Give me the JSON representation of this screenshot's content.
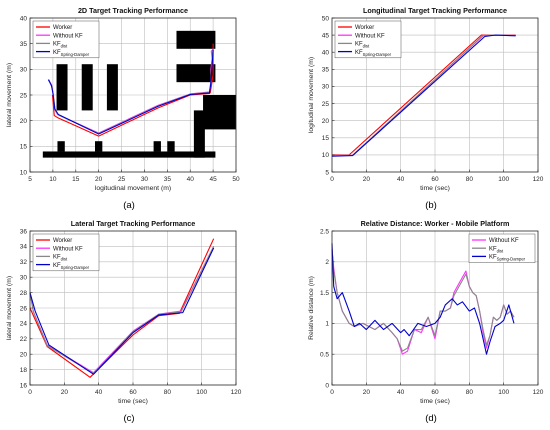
{
  "colors": {
    "worker": "#ff0000",
    "without_kf": "#ff33ff",
    "kf_dist": "#888888",
    "kf_spring": "#0000cc",
    "obstacle": "#000000",
    "grid": "#bdbdbd"
  },
  "chart_data": [
    {
      "type": "line",
      "panel_label": "(a)",
      "title": "2D Target Tracking Performance",
      "xlabel": "logitudinal movement (m)",
      "ylabel": "lateral movement (m)",
      "xlim": [
        5,
        50
      ],
      "ylim": [
        10,
        40
      ],
      "xticks": [
        5,
        10,
        15,
        20,
        25,
        30,
        35,
        40,
        45,
        50
      ],
      "yticks": [
        10,
        15,
        20,
        25,
        30,
        35,
        40
      ],
      "grid": true,
      "legend": {
        "position": "top-left",
        "entries": [
          {
            "series": "worker",
            "text": "Worker",
            "sub": ""
          },
          {
            "series": "without_kf",
            "text": "Without KF",
            "sub": ""
          },
          {
            "series": "kf_dist",
            "text": "KF",
            "sub": "dist"
          },
          {
            "series": "kf_spring",
            "text": "KF",
            "sub": "Spring-Damper"
          }
        ]
      },
      "obstacles": [
        [
          10.8,
          22,
          13.2,
          31
        ],
        [
          16.3,
          22,
          18.7,
          31
        ],
        [
          21.8,
          22,
          24.2,
          31
        ],
        [
          37.0,
          34,
          45.5,
          37.5
        ],
        [
          37.0,
          27.5,
          45.5,
          31
        ],
        [
          42.8,
          18.3,
          50,
          25
        ],
        [
          40.8,
          12.8,
          43.2,
          22
        ],
        [
          7.8,
          12.8,
          45.5,
          14.0
        ],
        [
          11.0,
          14,
          12.6,
          16
        ],
        [
          19.2,
          14,
          20.8,
          16
        ],
        [
          32.0,
          14,
          33.6,
          16
        ],
        [
          35.0,
          14,
          36.6,
          16
        ]
      ],
      "series": [
        {
          "key": "worker",
          "x": [
            9.9,
            10.2,
            10.3,
            11.0,
            20.0,
            33.0,
            40.0,
            44.2,
            44.4,
            45.0,
            45.0
          ],
          "y": [
            25.0,
            22.0,
            21.0,
            20.6,
            17.0,
            22.5,
            25.0,
            25.3,
            25.5,
            29.0,
            35.0
          ]
        },
        {
          "key": "without_kf",
          "x": [
            9.1,
            9.3,
            9.7,
            10.0,
            10.4,
            11.0,
            20.0,
            33.0,
            40.0,
            44.2,
            44.6,
            44.5,
            44.8,
            44.6,
            45.0
          ],
          "y": [
            28.0,
            27.6,
            27.0,
            25.5,
            22.2,
            21.2,
            17.6,
            23.0,
            25.2,
            25.6,
            27.5,
            30.0,
            32.0,
            33.5,
            34.0
          ]
        },
        {
          "key": "kf_dist",
          "x": [
            9.1,
            9.4,
            9.8,
            10.1,
            10.5,
            11.2,
            20.0,
            33.0,
            40.0,
            44.2,
            44.5,
            44.6,
            44.8,
            45.0
          ],
          "y": [
            28.0,
            27.4,
            26.5,
            25.0,
            22.0,
            21.1,
            17.5,
            22.9,
            25.2,
            25.5,
            27.5,
            30.0,
            32.5,
            34.0
          ]
        },
        {
          "key": "kf_spring",
          "x": [
            9.0,
            9.3,
            9.7,
            10.0,
            10.4,
            11.2,
            20.0,
            33.0,
            40.0,
            44.2,
            44.5,
            44.7,
            44.9,
            45.0
          ],
          "y": [
            28.0,
            27.5,
            26.8,
            25.4,
            22.3,
            21.2,
            17.4,
            22.8,
            25.1,
            25.4,
            27.3,
            30.0,
            32.2,
            33.8
          ]
        }
      ]
    },
    {
      "type": "line",
      "panel_label": "(b)",
      "title": "Longitudinal Target Tracking Performance",
      "xlabel": "time (sec)",
      "ylabel": "logitudinal movement (m)",
      "xlim": [
        0,
        120
      ],
      "ylim": [
        5,
        50
      ],
      "xticks": [
        0,
        20,
        40,
        60,
        80,
        100,
        120
      ],
      "yticks": [
        5,
        10,
        15,
        20,
        25,
        30,
        35,
        40,
        45,
        50
      ],
      "grid": true,
      "legend": {
        "position": "top-left",
        "entries": [
          {
            "series": "worker",
            "text": "Worker",
            "sub": ""
          },
          {
            "series": "without_kf",
            "text": "Without KF",
            "sub": ""
          },
          {
            "series": "kf_dist",
            "text": "KF",
            "sub": "dist"
          },
          {
            "series": "kf_spring",
            "text": "KF",
            "sub": "Spring-Damper"
          }
        ]
      },
      "series": [
        {
          "key": "worker",
          "x": [
            0,
            10,
            87,
            95,
            107
          ],
          "y": [
            10,
            10,
            45,
            45,
            45
          ]
        },
        {
          "key": "without_kf",
          "x": [
            0,
            12,
            88,
            95,
            107
          ],
          "y": [
            9.8,
            9.9,
            44.8,
            45.0,
            44.9
          ]
        },
        {
          "key": "kf_dist",
          "x": [
            0,
            12,
            88,
            95,
            107
          ],
          "y": [
            9.8,
            9.9,
            44.9,
            45.0,
            44.9
          ]
        },
        {
          "key": "kf_spring",
          "x": [
            0,
            12,
            89,
            95,
            107
          ],
          "y": [
            9.6,
            9.8,
            44.6,
            45.0,
            44.8
          ]
        }
      ]
    },
    {
      "type": "line",
      "panel_label": "(c)",
      "title": "Lateral Target Tracking Performance",
      "xlabel": "time (sec)",
      "ylabel": "lateral movement (m)",
      "xlim": [
        0,
        120
      ],
      "ylim": [
        16,
        36
      ],
      "xticks": [
        0,
        20,
        40,
        60,
        80,
        100,
        120
      ],
      "yticks": [
        16,
        18,
        20,
        22,
        24,
        26,
        28,
        30,
        32,
        34,
        36
      ],
      "grid": true,
      "legend": {
        "position": "top-left",
        "entries": [
          {
            "series": "worker",
            "text": "Worker",
            "sub": ""
          },
          {
            "series": "without_kf",
            "text": "Without KF",
            "sub": ""
          },
          {
            "series": "kf_dist",
            "text": "KF",
            "sub": "dist"
          },
          {
            "series": "kf_spring",
            "text": "KF",
            "sub": "Spring-Damper"
          }
        ]
      },
      "series": [
        {
          "key": "worker",
          "x": [
            0,
            10,
            35,
            60,
            75,
            87,
            107
          ],
          "y": [
            26.0,
            21.0,
            17.0,
            22.5,
            25.0,
            25.3,
            35.0
          ]
        },
        {
          "key": "without_kf",
          "x": [
            0,
            2,
            10,
            37,
            60,
            75,
            88,
            107
          ],
          "y": [
            28.0,
            25.5,
            21.2,
            17.6,
            23.0,
            25.2,
            25.6,
            34.0
          ]
        },
        {
          "key": "kf_dist",
          "x": [
            0,
            2,
            10,
            37,
            60,
            75,
            88,
            107
          ],
          "y": [
            28.0,
            25.5,
            21.1,
            17.5,
            22.9,
            25.2,
            25.5,
            34.0
          ]
        },
        {
          "key": "kf_spring",
          "x": [
            0,
            3,
            11,
            37,
            60,
            75,
            89,
            107
          ],
          "y": [
            28.0,
            25.6,
            21.2,
            17.4,
            22.8,
            25.1,
            25.4,
            33.8
          ]
        }
      ]
    },
    {
      "type": "line",
      "panel_label": "(d)",
      "title": "Relative Distance: Worker - Mobile Platform",
      "xlabel": "time (sec)",
      "ylabel": "Relative distance (m)",
      "xlim": [
        0,
        120
      ],
      "ylim": [
        0,
        2.5
      ],
      "xticks": [
        0,
        20,
        40,
        60,
        80,
        100,
        120
      ],
      "yticks": [
        0,
        0.5,
        1,
        1.5,
        2,
        2.5
      ],
      "grid": true,
      "legend": {
        "position": "top-right",
        "entries": [
          {
            "series": "without_kf",
            "text": "Without KF",
            "sub": ""
          },
          {
            "series": "kf_dist",
            "text": "KF",
            "sub": "dist"
          },
          {
            "series": "kf_spring",
            "text": "KF",
            "sub": "Spring-Damper"
          }
        ]
      },
      "series": [
        {
          "key": "without_kf",
          "x": [
            0,
            1,
            3,
            6,
            10,
            13,
            18,
            25,
            30,
            35,
            38,
            41,
            44,
            48,
            52,
            56,
            60,
            63,
            66,
            69,
            71,
            73,
            75,
            78,
            80,
            82,
            84,
            86,
            88,
            90,
            92,
            94,
            96,
            98,
            100,
            102,
            104,
            106
          ],
          "y": [
            2.2,
            1.9,
            1.5,
            1.2,
            1.0,
            0.95,
            1.0,
            0.9,
            1.0,
            0.85,
            0.75,
            0.5,
            0.55,
            0.9,
            0.85,
            1.1,
            0.75,
            1.2,
            1.2,
            1.25,
            1.5,
            1.6,
            1.7,
            1.85,
            1.6,
            1.5,
            1.45,
            1.2,
            0.85,
            0.6,
            0.8,
            1.1,
            1.05,
            1.1,
            1.3,
            1.15,
            1.2,
            1.1
          ]
        },
        {
          "key": "kf_dist",
          "x": [
            0,
            1,
            3,
            6,
            10,
            13,
            18,
            25,
            30,
            35,
            38,
            41,
            44,
            48,
            52,
            56,
            60,
            63,
            66,
            69,
            71,
            73,
            75,
            78,
            80,
            82,
            84,
            86,
            88,
            90,
            92,
            94,
            96,
            98,
            100,
            102,
            104,
            106
          ],
          "y": [
            2.2,
            1.85,
            1.5,
            1.2,
            1.0,
            0.95,
            1.0,
            0.9,
            1.0,
            0.85,
            0.75,
            0.55,
            0.6,
            0.9,
            0.9,
            1.1,
            0.8,
            1.2,
            1.2,
            1.25,
            1.45,
            1.55,
            1.65,
            1.8,
            1.6,
            1.5,
            1.45,
            1.2,
            0.9,
            0.65,
            0.8,
            1.1,
            1.05,
            1.1,
            1.3,
            1.15,
            1.2,
            1.1
          ]
        },
        {
          "key": "kf_spring",
          "x": [
            0,
            1,
            3,
            6,
            10,
            13,
            16,
            20,
            25,
            30,
            35,
            40,
            42,
            45,
            50,
            55,
            60,
            63,
            66,
            70,
            73,
            76,
            80,
            83,
            86,
            88,
            90,
            92,
            95,
            98,
            100,
            103,
            106
          ],
          "y": [
            2.3,
            1.6,
            1.4,
            1.5,
            1.2,
            0.95,
            1.0,
            0.9,
            1.05,
            0.9,
            1.0,
            0.85,
            0.9,
            0.8,
            1.0,
            0.95,
            1.0,
            1.1,
            1.3,
            1.4,
            1.3,
            1.35,
            1.2,
            1.25,
            1.0,
            0.75,
            0.5,
            0.7,
            0.95,
            1.0,
            1.05,
            1.3,
            1.0
          ]
        }
      ]
    }
  ]
}
